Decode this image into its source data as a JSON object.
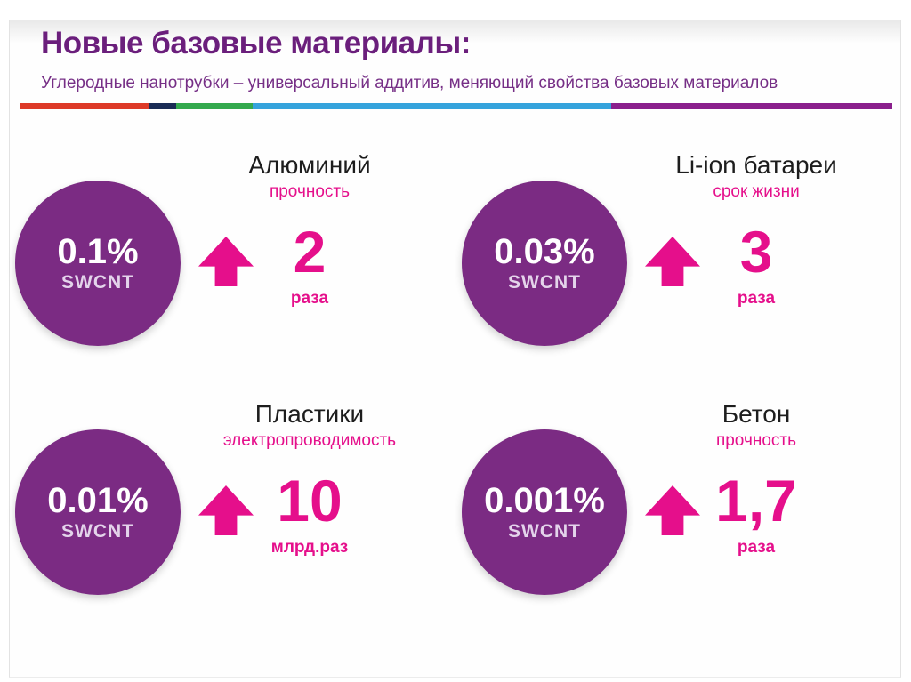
{
  "slide": {
    "title": "Новые базовые материалы:",
    "subtitle": "Углеродные нанотрубки – универсальный аддитив, меняющий свойства базовых материалов"
  },
  "divider": {
    "segments": [
      {
        "name": "red",
        "color": "#DD3927",
        "width_pct": 14.7
      },
      {
        "name": "navy",
        "color": "#1A2B55",
        "width_pct": 3.2
      },
      {
        "name": "green",
        "color": "#33A94D",
        "width_pct": 8.7
      },
      {
        "name": "cyan",
        "color": "#35A3DC",
        "width_pct": 41.2
      },
      {
        "name": "purple",
        "color": "#8A1F8C",
        "width_pct": 32.2
      }
    ]
  },
  "cards": [
    {
      "id": "aluminum",
      "material": "Алюминий",
      "property": "прочность",
      "concentration": "0.1%",
      "additive": "SWCNT",
      "value": "2",
      "unit": "раза"
    },
    {
      "id": "li-ion",
      "material": "Li-ion батареи",
      "property": "срок жизни",
      "concentration": "0.03%",
      "additive": "SWCNT",
      "value": "3",
      "unit": "раза"
    },
    {
      "id": "plastics",
      "material": "Пластики",
      "property": "электропроводимость",
      "concentration": "0.01%",
      "additive": "SWCNT",
      "value": "10",
      "unit": "млрд.раз"
    },
    {
      "id": "concrete",
      "material": "Бетон",
      "property": "прочность",
      "concentration": "0.001%",
      "additive": "SWCNT",
      "value": "1,7",
      "unit": "раза"
    }
  ],
  "colors": {
    "title": "#6B1F7C",
    "subtitle": "#762F86",
    "ink": "#1D1D1D",
    "circle": "#7B2B83",
    "accent": "#E50F8B",
    "swcnt": "#E4D4EB"
  }
}
